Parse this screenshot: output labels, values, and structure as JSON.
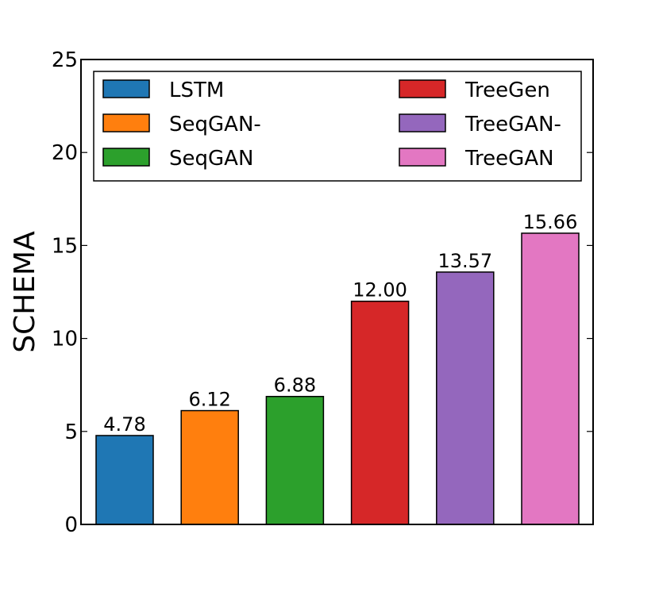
{
  "chart_data": {
    "type": "bar",
    "categories": [
      "LSTM",
      "SeqGAN-",
      "SeqGAN",
      "TreeGen",
      "TreeGAN-",
      "TreeGAN"
    ],
    "values": [
      4.78,
      6.12,
      6.88,
      12.0,
      13.57,
      15.66
    ],
    "value_labels": [
      "4.78",
      "6.12",
      "6.88",
      "12.00",
      "13.57",
      "15.66"
    ],
    "colors": [
      "#1f77b4",
      "#ff7f0e",
      "#2ca02c",
      "#d62728",
      "#9467bd",
      "#e377c2"
    ],
    "title": "",
    "xlabel": "",
    "ylabel": "SCHEMA",
    "ylim": [
      0,
      25
    ],
    "yticks": [
      0,
      5,
      10,
      15,
      20,
      25
    ],
    "ytick_labels": [
      "0",
      "5",
      "10",
      "15",
      "20",
      "25"
    ],
    "grid": false,
    "legend": {
      "placement": "top",
      "columns": 2,
      "entries": [
        "LSTM",
        "SeqGAN-",
        "SeqGAN",
        "TreeGen",
        "TreeGAN-",
        "TreeGAN"
      ]
    }
  }
}
